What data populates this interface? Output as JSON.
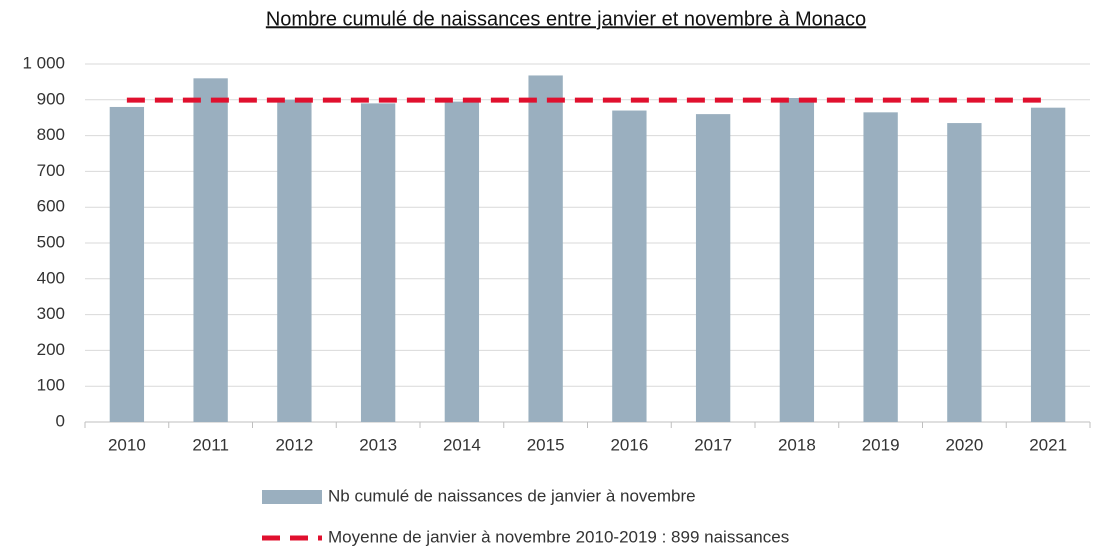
{
  "chart_data": {
    "type": "bar",
    "title": "Nombre cumulé de naissances entre janvier et novembre à Monaco",
    "categories": [
      "2010",
      "2011",
      "2012",
      "2013",
      "2014",
      "2015",
      "2016",
      "2017",
      "2018",
      "2019",
      "2020",
      "2021"
    ],
    "series": [
      {
        "name": "Nb cumulé de naissances de janvier à novembre",
        "type": "bar",
        "color": "#9aafbf",
        "values": [
          880,
          960,
          900,
          890,
          895,
          968,
          870,
          860,
          905,
          865,
          835,
          878
        ]
      },
      {
        "name": "Moyenne de janvier à novembre 2010-2019 : 899 naissances",
        "type": "line",
        "color": "#e0102e",
        "values": [
          899,
          899,
          899,
          899,
          899,
          899,
          899,
          899,
          899,
          899,
          899,
          899
        ]
      }
    ],
    "ylim": [
      0,
      1000
    ],
    "yticks": [
      0,
      100,
      200,
      300,
      400,
      500,
      600,
      700,
      800,
      900,
      {
        "value": 1000,
        "label": "1 000"
      }
    ],
    "grid": true,
    "legend": "bottom"
  }
}
